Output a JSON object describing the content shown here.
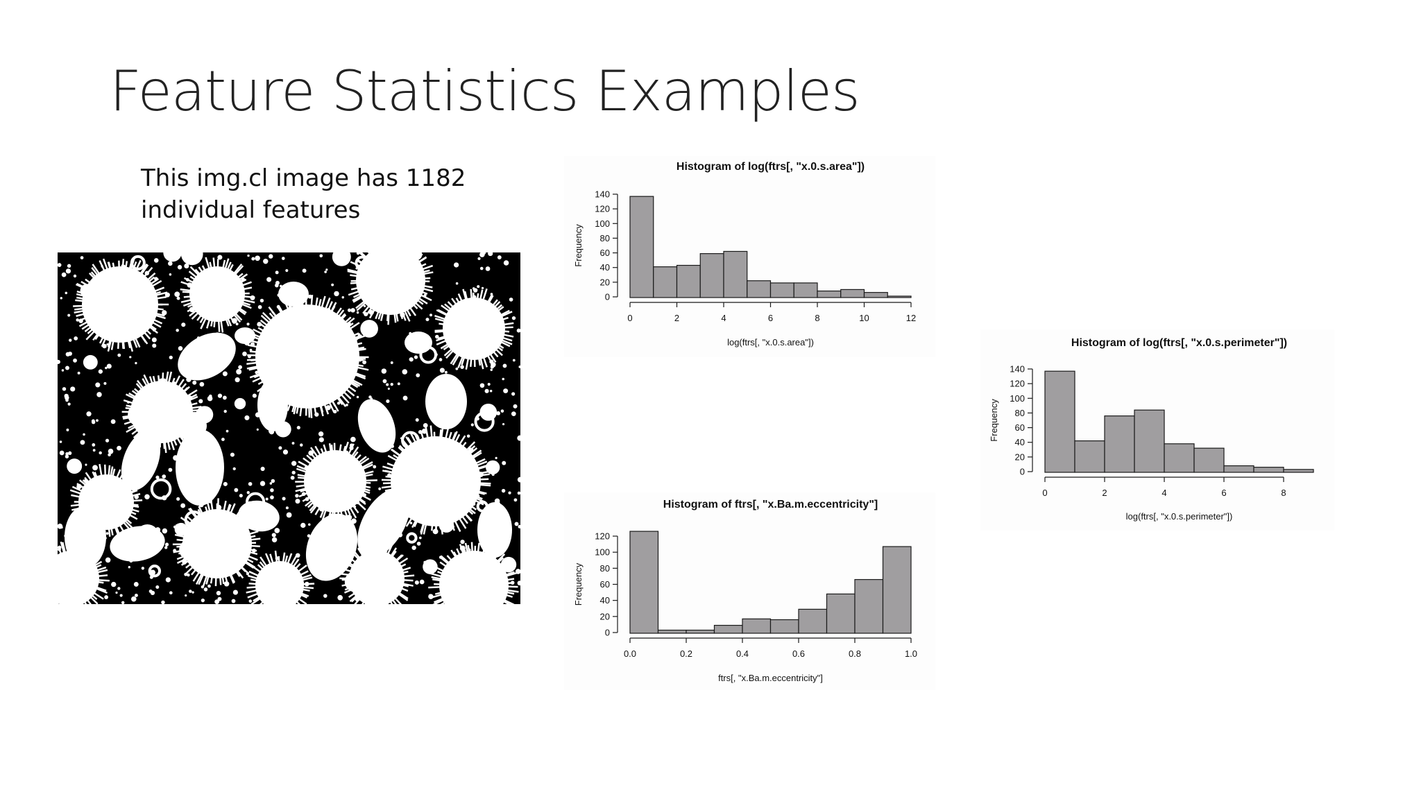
{
  "slide": {
    "title": "Feature Statistics Examples",
    "caption_line1": "This img.cl image has 1182",
    "caption_line2": "individual features"
  },
  "image": {
    "description_icon": "binary-cell-image",
    "colors": {
      "foreground": "#ffffff",
      "background": "#000000"
    }
  },
  "colors": {
    "bar_fill": "#a09ea0",
    "bar_stroke": "#1a1a1a",
    "axis": "#1a1a1a"
  },
  "chart_data": [
    {
      "id": "area",
      "type": "bar",
      "title": "Histogram of log(ftrs[, \"x.0.s.area\"])",
      "xlabel": "log(ftrs[, \"x.0.s.area\"])",
      "ylabel": "Frequency",
      "bin_edges": [
        0,
        1,
        2,
        3,
        4,
        5,
        6,
        7,
        8,
        9,
        10,
        11,
        12
      ],
      "values": [
        137,
        41,
        43,
        59,
        62,
        22,
        19,
        19,
        8,
        10,
        6,
        1
      ],
      "xlim": [
        0,
        12
      ],
      "ylim": [
        0,
        140
      ],
      "xticks": [
        0,
        2,
        4,
        6,
        8,
        10,
        12
      ],
      "xtick_labels": [
        "0",
        "2",
        "4",
        "6",
        "8",
        "10",
        "12"
      ],
      "yticks": [
        0,
        20,
        40,
        60,
        80,
        100,
        120,
        140
      ],
      "ytick_labels": [
        "0",
        "20",
        "40",
        "60",
        "80",
        "100",
        "120",
        "140"
      ],
      "grid": false
    },
    {
      "id": "perimeter",
      "type": "bar",
      "title": "Histogram of log(ftrs[, \"x.0.s.perimeter\"])",
      "xlabel": "log(ftrs[, \"x.0.s.perimeter\"])",
      "ylabel": "Frequency",
      "bin_edges": [
        0,
        1,
        2,
        3,
        4,
        5,
        6,
        7,
        8,
        9
      ],
      "values": [
        137,
        42,
        76,
        84,
        38,
        32,
        8,
        6,
        3
      ],
      "xlim": [
        0,
        9
      ],
      "ylim": [
        0,
        140
      ],
      "xticks": [
        0,
        2,
        4,
        6,
        8
      ],
      "xtick_labels": [
        "0",
        "2",
        "4",
        "6",
        "8"
      ],
      "yticks": [
        0,
        20,
        40,
        60,
        80,
        100,
        120,
        140
      ],
      "ytick_labels": [
        "0",
        "20",
        "40",
        "60",
        "80",
        "100",
        "120",
        "140"
      ],
      "grid": false
    },
    {
      "id": "eccentricity",
      "type": "bar",
      "title": "Histogram of ftrs[, \"x.Ba.m.eccentricity\"]",
      "xlabel": "ftrs[, \"x.Ba.m.eccentricity\"]",
      "ylabel": "Frequency",
      "bin_edges": [
        0,
        0.1,
        0.2,
        0.3,
        0.4,
        0.5,
        0.6,
        0.7,
        0.8,
        0.9,
        1.0
      ],
      "values": [
        126,
        3,
        3,
        9,
        17,
        16,
        29,
        48,
        66,
        107
      ],
      "xlim": [
        0,
        1
      ],
      "ylim": [
        0,
        120
      ],
      "xticks": [
        0,
        0.2,
        0.4,
        0.6,
        0.8,
        1.0
      ],
      "xtick_labels": [
        "0.0",
        "0.2",
        "0.4",
        "0.6",
        "0.8",
        "1.0"
      ],
      "yticks": [
        0,
        20,
        40,
        60,
        80,
        100,
        120
      ],
      "ytick_labels": [
        "0",
        "20",
        "40",
        "60",
        "80",
        "100",
        "120"
      ],
      "grid": false
    }
  ]
}
